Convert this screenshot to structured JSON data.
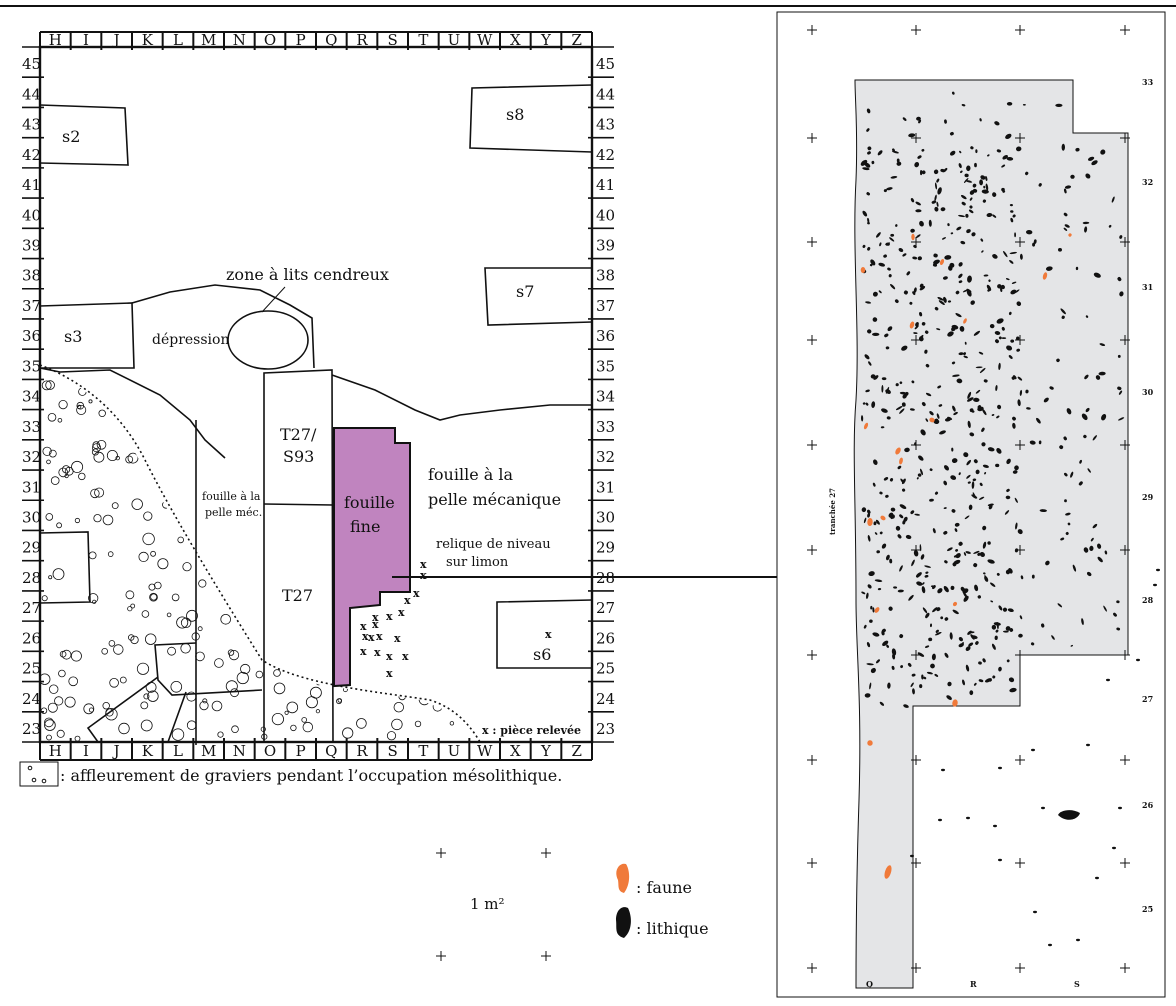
{
  "left_plan": {
    "columns_top": [
      "H",
      "I",
      "J",
      "K",
      "L",
      "M",
      "N",
      "O",
      "P",
      "Q",
      "R",
      "S",
      "T",
      "U",
      "W",
      "X",
      "Y",
      "Z"
    ],
    "columns_bottom": [
      "H",
      "I",
      "J",
      "K",
      "L",
      "M",
      "N",
      "O",
      "P",
      "Q",
      "R",
      "S",
      "T",
      "U",
      "W",
      "X",
      "Y",
      "Z"
    ],
    "rows": [
      "45",
      "44",
      "43",
      "42",
      "41",
      "40",
      "39",
      "38",
      "37",
      "36",
      "35",
      "34",
      "33",
      "32",
      "31",
      "30",
      "29",
      "28",
      "27",
      "26",
      "25",
      "24",
      "23"
    ],
    "labels": {
      "s2": "s2",
      "s8": "s8",
      "s7": "s7",
      "s3": "s3",
      "s6": "s6",
      "zone": "zone à lits cendreux",
      "depression": "dépression",
      "t27s93_line1": "T27/",
      "t27s93_line2": "S93",
      "t27": "T27",
      "fouille_fine_line1": "fouille",
      "fouille_fine_line2": "fine",
      "pelle_mec_line1": "fouille à la",
      "pelle_mec_line2": "pelle méc.",
      "pelle_mecanique_line1": "fouille à la",
      "pelle_mecanique_line2": "pelle mécanique",
      "relique_line1": "relique de niveau",
      "relique_line2": "sur limon",
      "piece_relevee": "x : pièce relevée",
      "x_mark": "x"
    },
    "colors": {
      "fouille_fine": "#c084bf",
      "stroke": "#111111"
    }
  },
  "legend": {
    "gravel_text": ": affleurement de graviers pendant l’occupation mésolithique.",
    "scale_label": "1 m²",
    "faune_label": ": faune",
    "lithique_label": ": lithique",
    "colors": {
      "faune": "#f07a3a",
      "lithique": "#111111"
    }
  },
  "right_plan": {
    "row_labels": [
      "33",
      "32",
      "31",
      "30",
      "29",
      "28",
      "27",
      "26",
      "25"
    ],
    "col_labels": [
      "Q",
      "R",
      "S"
    ],
    "tranchee_label": "tranchée 27",
    "colors": {
      "fill": "#e4e5e7",
      "faune": "#f07a3a",
      "lithique": "#111111"
    }
  }
}
